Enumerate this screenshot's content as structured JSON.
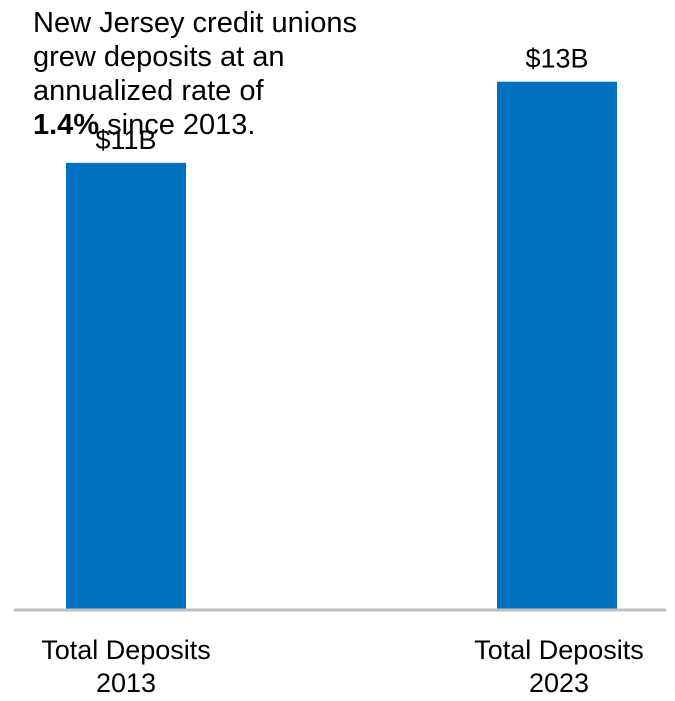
{
  "annotation": {
    "line1": "New Jersey credit unions",
    "line2": "grew deposits at an",
    "line3": "annualized rate of",
    "rate": "1.4%",
    "line4_rest": " since 2013."
  },
  "chart_data": {
    "type": "bar",
    "categories": [
      "Total Deposits 2013",
      "Total Deposits 2023"
    ],
    "category_lines": [
      [
        "Total  Deposits",
        "2013"
      ],
      [
        "Total  Deposits",
        "2023"
      ]
    ],
    "values": [
      11,
      13
    ],
    "data_labels": [
      "$11B",
      "$13B"
    ],
    "unit": "$B",
    "ylim": [
      0,
      14.3
    ],
    "bar_color": "#0070C0",
    "axis_color": "#BFBFBF",
    "grid": false,
    "legend": "none"
  }
}
